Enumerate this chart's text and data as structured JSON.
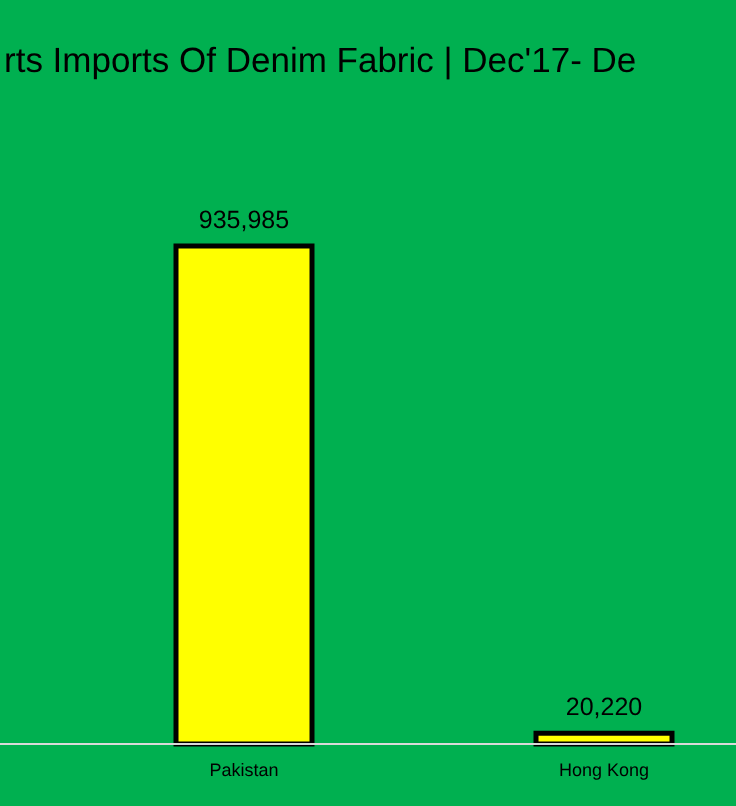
{
  "chart_data": {
    "type": "bar",
    "title": "rts Imports Of Denim Fabric | Dec'17- De",
    "categories": [
      "Pakistan",
      "Hong Kong"
    ],
    "values": [
      935985,
      20220
    ],
    "value_labels": [
      "935,985",
      "20,220"
    ],
    "color": "#ffff00"
  }
}
